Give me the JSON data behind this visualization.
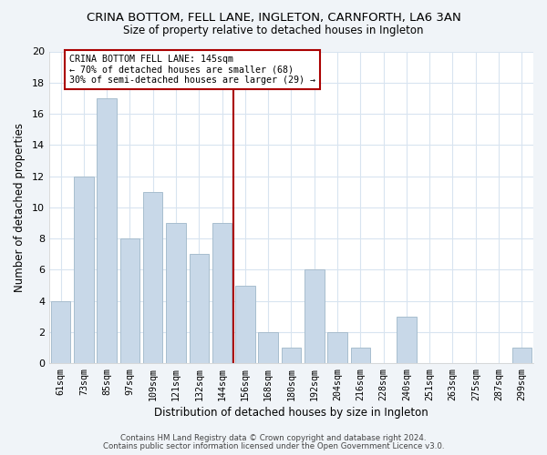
{
  "title": "CRINA BOTTOM, FELL LANE, INGLETON, CARNFORTH, LA6 3AN",
  "subtitle": "Size of property relative to detached houses in Ingleton",
  "xlabel": "Distribution of detached houses by size in Ingleton",
  "ylabel": "Number of detached properties",
  "bar_labels": [
    "61sqm",
    "73sqm",
    "85sqm",
    "97sqm",
    "109sqm",
    "121sqm",
    "132sqm",
    "144sqm",
    "156sqm",
    "168sqm",
    "180sqm",
    "192sqm",
    "204sqm",
    "216sqm",
    "228sqm",
    "240sqm",
    "251sqm",
    "263sqm",
    "275sqm",
    "287sqm",
    "299sqm"
  ],
  "bar_values": [
    4,
    12,
    17,
    8,
    11,
    9,
    7,
    9,
    5,
    2,
    1,
    6,
    2,
    1,
    0,
    3,
    0,
    0,
    0,
    0,
    1
  ],
  "bar_color": "#c8d8e8",
  "bar_edge_color": "#a8bece",
  "vline_idx": 7.5,
  "vline_color": "#aa0000",
  "annotation_title": "CRINA BOTTOM FELL LANE: 145sqm",
  "annotation_line1": "← 70% of detached houses are smaller (68)",
  "annotation_line2": "30% of semi-detached houses are larger (29) →",
  "annotation_box_facecolor": "#ffffff",
  "annotation_box_edgecolor": "#aa0000",
  "footer_line1": "Contains HM Land Registry data © Crown copyright and database right 2024.",
  "footer_line2": "Contains public sector information licensed under the Open Government Licence v3.0.",
  "ylim": [
    0,
    20
  ],
  "yticks": [
    0,
    2,
    4,
    6,
    8,
    10,
    12,
    14,
    16,
    18,
    20
  ],
  "grid_color": "#d8e4f0",
  "plot_bg_color": "#ffffff",
  "fig_bg_color": "#f0f4f8"
}
